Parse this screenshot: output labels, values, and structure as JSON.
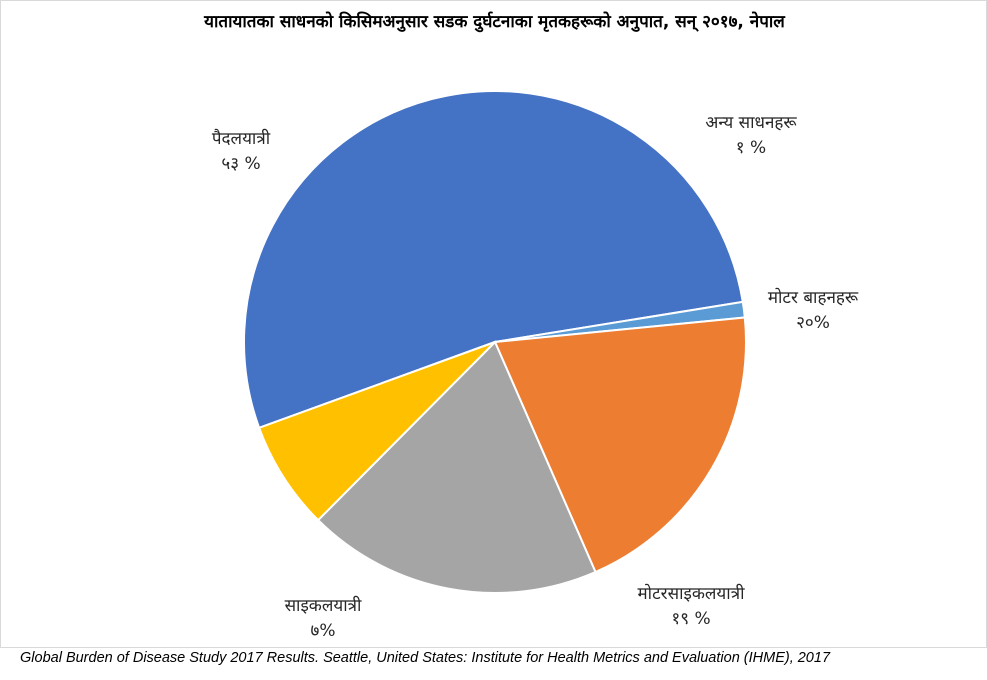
{
  "chart_data": {
    "type": "pie",
    "title": "यातायातका साधनको किसिमअनुसार सडक दुर्घटनाका मृतकहरूको अनुपात, सन् २०१७, नेपाल",
    "categories": [
      "पैदलयात्री",
      "अन्य साधनहरू",
      "मोटर बाहनहरू",
      "मोटरसाइकलयात्री",
      "साइकलयात्री"
    ],
    "values": [
      53,
      1,
      20,
      19,
      7
    ],
    "value_labels": [
      "५३ %",
      "१ %",
      "२०%",
      "१९ %",
      "७%"
    ],
    "colors": [
      "#4472C4",
      "#5B9BD5",
      "#ED7D31",
      "#A5A5A5",
      "#FFC000"
    ],
    "start_angle_deg": 200
  },
  "source": "Global Burden of Disease Study 2017 Results. Seattle, United States: Institute for Health Metrics and Evaluation (IHME), 2017"
}
